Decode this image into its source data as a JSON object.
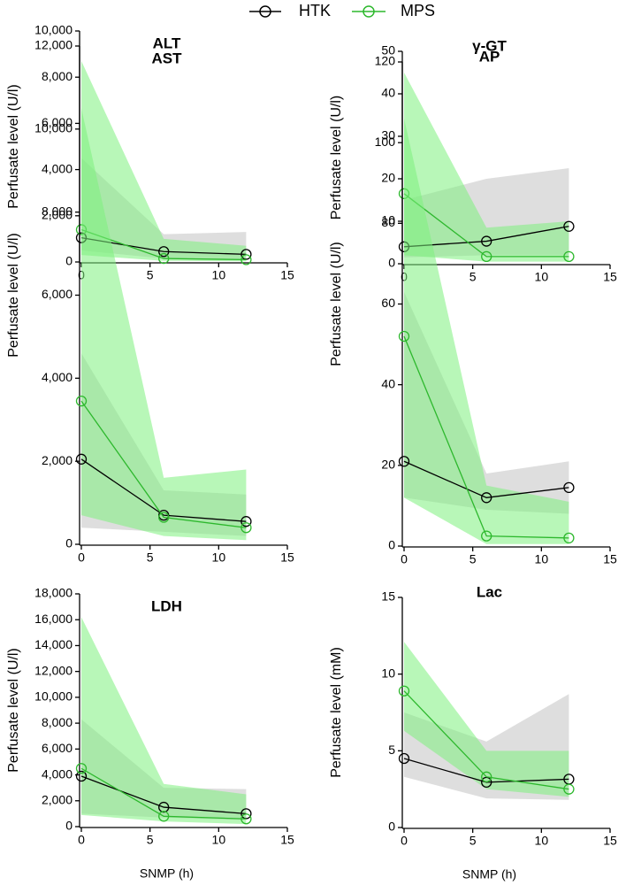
{
  "legend": [
    {
      "name": "HTK",
      "color": "#000000",
      "band_color": "#c8c8c8"
    },
    {
      "name": "MPS",
      "color": "#2db82d",
      "band_color": "#7ef07e"
    }
  ],
  "chart_data": [
    {
      "type": "line",
      "title": "ALT",
      "ylabel": "Perfusate level (U/l)",
      "x": [
        0,
        6,
        12
      ],
      "xlim": [
        0,
        15
      ],
      "xticks": [
        0,
        5,
        10,
        15
      ],
      "ylim": [
        0,
        10000
      ],
      "yticks": [
        0,
        {
          "value": 2000,
          "label": "2,000"
        },
        {
          "value": 4000,
          "label": "4,000"
        },
        {
          "value": 6000,
          "label": "6,000"
        },
        {
          "value": 8000,
          "label": "8,000"
        },
        {
          "value": 10000,
          "label": "10,000"
        }
      ],
      "series": [
        {
          "values": [
            1050,
            450,
            330
          ],
          "lower": [
            500,
            150,
            100
          ],
          "upper": [
            4500,
            1200,
            1300
          ]
        },
        {
          "values": [
            1400,
            150,
            100
          ],
          "lower": [
            300,
            50,
            30
          ],
          "upper": [
            8700,
            1000,
            700
          ]
        }
      ]
    },
    {
      "type": "line",
      "title": "γ-GT",
      "ylabel": "Perfusate level (U/l)",
      "x": [
        0,
        6,
        12
      ],
      "xlim": [
        0,
        15
      ],
      "xticks": [
        0,
        5,
        10,
        15
      ],
      "ylim": [
        0,
        50
      ],
      "yticks": [
        0,
        10,
        20,
        30,
        40,
        50
      ],
      "series": [
        {
          "values": [
            4,
            5.3,
            8.8
          ],
          "lower": [
            1.5,
            2,
            2
          ],
          "upper": [
            15,
            20,
            22.5
          ]
        },
        {
          "values": [
            16.5,
            1.7,
            1.7
          ],
          "lower": [
            2,
            0.5,
            0.5
          ],
          "upper": [
            45,
            8.5,
            10
          ]
        }
      ]
    },
    {
      "type": "line",
      "title": "AST",
      "ylabel": "Perfusate level (U/l)",
      "x": [
        0,
        6,
        12
      ],
      "xlim": [
        0,
        15
      ],
      "xticks": [
        0,
        5,
        10,
        15
      ],
      "ylim": [
        0,
        12000
      ],
      "yticks": [
        0,
        {
          "value": 2000,
          "label": "2,000"
        },
        {
          "value": 4000,
          "label": "4,000"
        },
        {
          "value": 6000,
          "label": "6,000"
        },
        {
          "value": 8000,
          "label": "8,000"
        },
        {
          "value": 10000,
          "label": "10,000"
        },
        {
          "value": 12000,
          "label": "12,000"
        }
      ],
      "series": [
        {
          "values": [
            2050,
            700,
            550
          ],
          "lower": [
            400,
            300,
            200
          ],
          "upper": [
            4600,
            1300,
            1200
          ]
        },
        {
          "values": [
            3450,
            650,
            400
          ],
          "lower": [
            700,
            200,
            100
          ],
          "upper": [
            10500,
            1600,
            1800
          ]
        }
      ]
    },
    {
      "type": "line",
      "title": "AP",
      "ylabel": "Perfusate level (U/l)",
      "x": [
        0,
        6,
        12
      ],
      "xlim": [
        0,
        15
      ],
      "xticks": [
        0,
        5,
        10,
        15
      ],
      "ylim": [
        0,
        120
      ],
      "yticks": [
        0,
        20,
        40,
        60,
        80,
        100,
        120
      ],
      "series": [
        {
          "values": [
            21,
            12,
            14.5
          ],
          "lower": [
            12,
            9,
            8
          ],
          "upper": [
            63,
            18,
            21
          ]
        },
        {
          "values": [
            52,
            2.5,
            2
          ],
          "lower": [
            12,
            0.5,
            0.5
          ],
          "upper": [
            106,
            15,
            11
          ]
        }
      ]
    },
    {
      "type": "line",
      "title": "LDH",
      "ylabel": "Perfusate level (U/l)",
      "xlabel": "SNMP (h)",
      "x": [
        0,
        6,
        12
      ],
      "xlim": [
        0,
        15
      ],
      "xticks": [
        0,
        5,
        10,
        15
      ],
      "ylim": [
        0,
        18000
      ],
      "yticks": [
        0,
        {
          "value": 2000,
          "label": "2,000"
        },
        {
          "value": 4000,
          "label": "4,000"
        },
        {
          "value": 6000,
          "label": "6,000"
        },
        {
          "value": 8000,
          "label": "8,000"
        },
        {
          "value": 10000,
          "label": "10,000"
        },
        {
          "value": 12000,
          "label": "12,000"
        },
        {
          "value": 14000,
          "label": "14,000"
        },
        {
          "value": 16000,
          "label": "16,000"
        },
        {
          "value": 18000,
          "label": "18,000"
        }
      ],
      "series": [
        {
          "values": [
            3900,
            1500,
            1000
          ],
          "lower": [
            1000,
            700,
            500
          ],
          "upper": [
            8300,
            3000,
            2900
          ]
        },
        {
          "values": [
            4500,
            800,
            600
          ],
          "lower": [
            900,
            400,
            200
          ],
          "upper": [
            16200,
            3300,
            2500
          ]
        }
      ]
    },
    {
      "type": "line",
      "title": "Lac",
      "ylabel": "Perfusate level (mM)",
      "xlabel": "SNMP (h)",
      "x": [
        0,
        6,
        12
      ],
      "xlim": [
        0,
        15
      ],
      "xticks": [
        0,
        5,
        10,
        15
      ],
      "ylim": [
        0,
        15
      ],
      "yticks": [
        0,
        5,
        10,
        15
      ],
      "series": [
        {
          "values": [
            4.5,
            2.95,
            3.15
          ],
          "lower": [
            3.3,
            1.9,
            1.8
          ],
          "upper": [
            7.5,
            5.6,
            8.7
          ]
        },
        {
          "values": [
            8.9,
            3.3,
            2.5
          ],
          "lower": [
            6.3,
            2.5,
            2
          ],
          "upper": [
            12.1,
            5,
            5
          ]
        }
      ]
    }
  ]
}
